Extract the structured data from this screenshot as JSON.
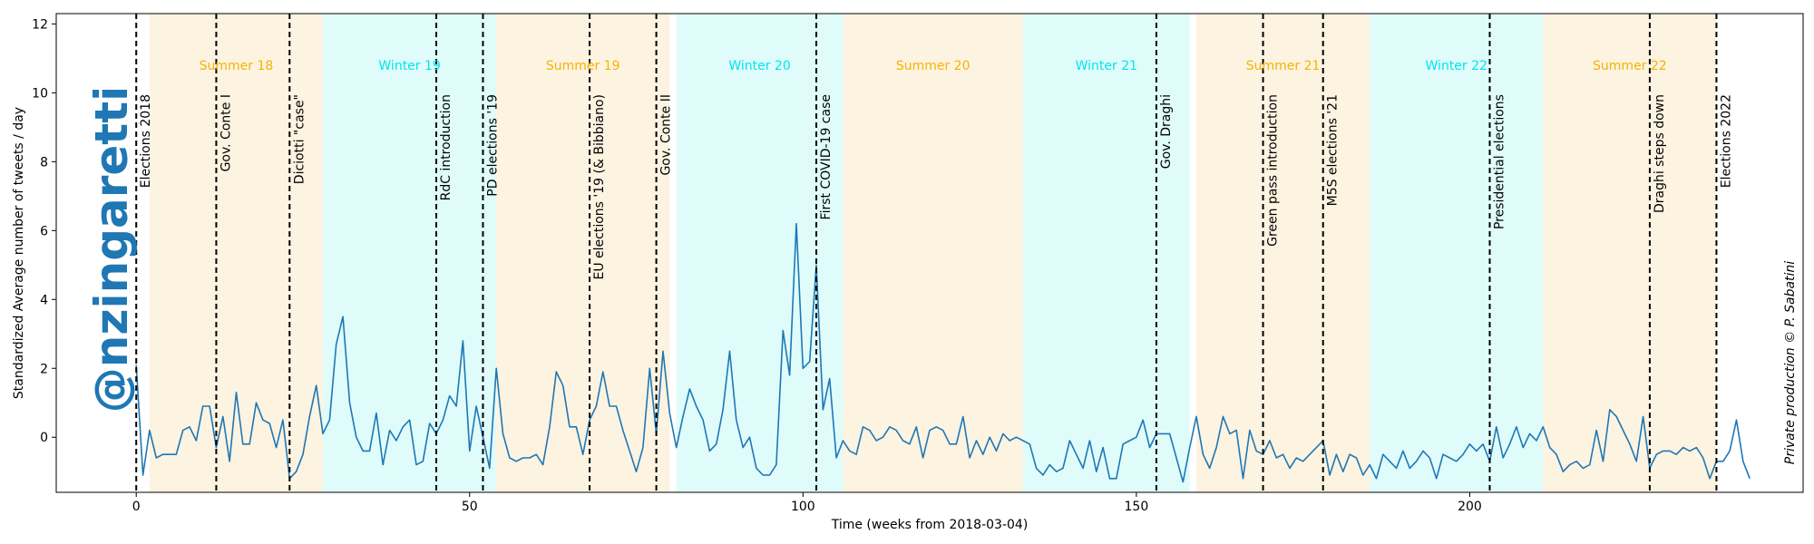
{
  "chart_data": {
    "type": "line",
    "xlabel": "Time (weeks from 2018-03-04)",
    "ylabel": "Standardized Average number of tweets / day",
    "xlim": [
      -12,
      250
    ],
    "ylim": [
      -1.6,
      12.3
    ],
    "x_ticks": [
      0,
      50,
      100,
      150,
      200
    ],
    "y_ticks": [
      0,
      2,
      4,
      6,
      8,
      10,
      12
    ],
    "grid": false,
    "watermark": "@nzingaretti",
    "credit": "Private production © P. Sabatini",
    "season_colors": {
      "Summer": "#fdf3e1",
      "Winter": "#dffcfb"
    },
    "season_label_colors": {
      "Summer": "#f5b400",
      "Winter": "#00e5ee"
    },
    "line_color": "#1f77b4",
    "seasons": [
      {
        "label": "Summer 18",
        "kind": "Summer",
        "start": 2,
        "end": 28
      },
      {
        "label": "Winter 19",
        "kind": "Winter",
        "start": 28,
        "end": 54
      },
      {
        "label": "Summer 19",
        "kind": "Summer",
        "start": 54,
        "end": 80
      },
      {
        "label": "Winter 20",
        "kind": "Winter",
        "start": 81,
        "end": 106
      },
      {
        "label": "Summer 20",
        "kind": "Summer",
        "start": 106,
        "end": 133
      },
      {
        "label": "Winter 21",
        "kind": "Winter",
        "start": 133,
        "end": 158
      },
      {
        "label": "Summer 21",
        "kind": "Summer",
        "start": 159,
        "end": 185
      },
      {
        "label": "Winter 22",
        "kind": "Winter",
        "start": 185,
        "end": 211
      },
      {
        "label": "Summer 22",
        "kind": "Summer",
        "start": 211,
        "end": 237
      }
    ],
    "events": [
      {
        "x": 0,
        "label": "Elections 2018"
      },
      {
        "x": 12,
        "label": "Gov. Conte I"
      },
      {
        "x": 23,
        "label": "Diciotti \"case\""
      },
      {
        "x": 45,
        "label": "RdC introduction"
      },
      {
        "x": 52,
        "label": "PD elections '19"
      },
      {
        "x": 68,
        "label": "EU elections '19 (& Bibbiano)"
      },
      {
        "x": 78,
        "label": "Gov. Conte II"
      },
      {
        "x": 102,
        "label": "First COVID-19 case"
      },
      {
        "x": 153,
        "label": "Gov. Draghi"
      },
      {
        "x": 169,
        "label": "Green pass introduction"
      },
      {
        "x": 178,
        "label": "M5S elections '21"
      },
      {
        "x": 203,
        "label": "Presidential elections"
      },
      {
        "x": 227,
        "label": "Draghi steps down"
      },
      {
        "x": 237,
        "label": "Elections 2022"
      }
    ],
    "series": [
      {
        "values": [
          2.1,
          -1.1,
          0.2,
          -0.6,
          -0.5,
          -0.5,
          -0.5,
          0.2,
          0.3,
          -0.1,
          0.9,
          0.9,
          -0.3,
          0.6,
          -0.7,
          1.3,
          -0.2,
          -0.2,
          1.0,
          0.5,
          0.4,
          -0.3,
          0.5,
          -1.2,
          -1.0,
          -0.5,
          0.6,
          1.5,
          0.1,
          0.5,
          2.7,
          3.5,
          1.0,
          0.0,
          -0.4,
          -0.4,
          0.7,
          -0.8,
          0.2,
          -0.1,
          0.3,
          0.5,
          -0.8,
          -0.7,
          0.4,
          0.1,
          0.5,
          1.2,
          0.9,
          2.8,
          -0.4,
          0.9,
          0.0,
          -0.9,
          2.0,
          0.1,
          -0.6,
          -0.7,
          -0.6,
          -0.6,
          -0.5,
          -0.8,
          0.3,
          1.9,
          1.5,
          0.3,
          0.3,
          -0.5,
          0.5,
          0.9,
          1.9,
          0.9,
          0.9,
          0.2,
          -0.4,
          -1.0,
          -0.3,
          2.0,
          0.1,
          2.5,
          0.7,
          -0.3,
          0.6,
          1.4,
          0.9,
          0.5,
          -0.4,
          -0.2,
          0.8,
          2.5,
          0.5,
          -0.3,
          0.0,
          -0.9,
          -1.1,
          -1.1,
          -0.8,
          3.1,
          1.8,
          6.2,
          2.0,
          2.2,
          5.0,
          0.8,
          1.7,
          -0.6,
          -0.1,
          -0.4,
          -0.5,
          0.3,
          0.2,
          -0.1,
          0.0,
          0.3,
          0.2,
          -0.1,
          -0.2,
          0.3,
          -0.6,
          0.2,
          0.3,
          0.2,
          -0.2,
          -0.2,
          0.6,
          -0.6,
          -0.1,
          -0.5,
          0.0,
          -0.4,
          0.1,
          -0.1,
          0.0,
          -0.1,
          -0.2,
          -0.9,
          -1.1,
          -0.8,
          -1.0,
          -0.9,
          -0.1,
          -0.5,
          -0.9,
          -0.1,
          -1.0,
          -0.3,
          -1.2,
          -1.2,
          -0.2,
          -0.1,
          0.0,
          0.5,
          -0.3,
          0.1,
          0.1,
          0.1,
          -0.6,
          -1.3,
          -0.3,
          0.6,
          -0.5,
          -0.9,
          -0.3,
          0.6,
          0.1,
          0.2,
          -1.2,
          0.2,
          -0.4,
          -0.5,
          -0.1,
          -0.6,
          -0.5,
          -0.9,
          -0.6,
          -0.7,
          -0.5,
          -0.3,
          -0.1,
          -1.1,
          -0.5,
          -1.0,
          -0.5,
          -0.6,
          -1.1,
          -0.8,
          -1.2,
          -0.5,
          -0.7,
          -0.9,
          -0.4,
          -0.9,
          -0.7,
          -0.4,
          -0.6,
          -1.2,
          -0.5,
          -0.6,
          -0.7,
          -0.5,
          -0.2,
          -0.4,
          -0.2,
          -0.7,
          0.3,
          -0.6,
          -0.2,
          0.3,
          -0.3,
          0.1,
          -0.1,
          0.3,
          -0.3,
          -0.5,
          -1.0,
          -0.8,
          -0.7,
          -0.9,
          -0.8,
          0.2,
          -0.7,
          0.8,
          0.6,
          0.2,
          -0.2,
          -0.7,
          0.6,
          -0.9,
          -0.5,
          -0.4,
          -0.4,
          -0.5,
          -0.3,
          -0.4,
          -0.3,
          -0.6,
          -1.2,
          -0.7,
          -0.7,
          -0.4,
          0.5,
          -0.7,
          -1.2
        ]
      }
    ]
  }
}
